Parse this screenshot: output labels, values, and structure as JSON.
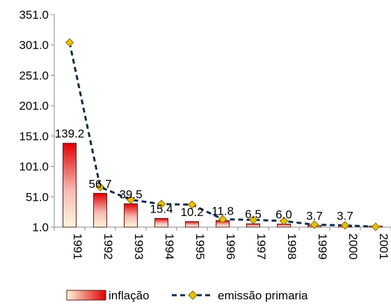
{
  "chart_data": {
    "type": "bar",
    "categories": [
      "1991",
      "1992",
      "1993",
      "1994",
      "1995",
      "1996",
      "1997",
      "1998",
      "1999",
      "2000",
      "2001"
    ],
    "series": [
      {
        "name": "inflação",
        "type": "bar",
        "values": [
          139.2,
          56.7,
          39.5,
          15.4,
          10.2,
          11.8,
          6.5,
          6.0,
          3.7,
          3.7,
          1.0
        ],
        "data_labels": [
          "139.2",
          "56.7",
          "39.5",
          "15.4",
          "10.2",
          "11.8",
          "6.5",
          "6.0",
          "3.7",
          "3.7",
          ""
        ],
        "color_top": "#e00000",
        "color_bottom": "#fdf6dc",
        "border_color": "#5a1a1a"
      },
      {
        "name": "emissão primaria",
        "type": "line",
        "values": [
          305,
          67,
          46,
          39,
          38,
          14,
          13,
          11,
          5,
          4,
          1.5
        ],
        "line_color": "#0d2a4a",
        "line_style": "dashed",
        "marker": "diamond",
        "marker_color": "#e8c000"
      }
    ],
    "yticks": [
      "351.0",
      "301.0",
      "251.0",
      "201.0",
      "151.0",
      "101.0",
      "51.0",
      "1.0"
    ],
    "ylim": [
      1.0,
      351.0
    ],
    "title": "",
    "xlabel": "",
    "ylabel": "",
    "grid": false,
    "legend_position": "bottom"
  }
}
